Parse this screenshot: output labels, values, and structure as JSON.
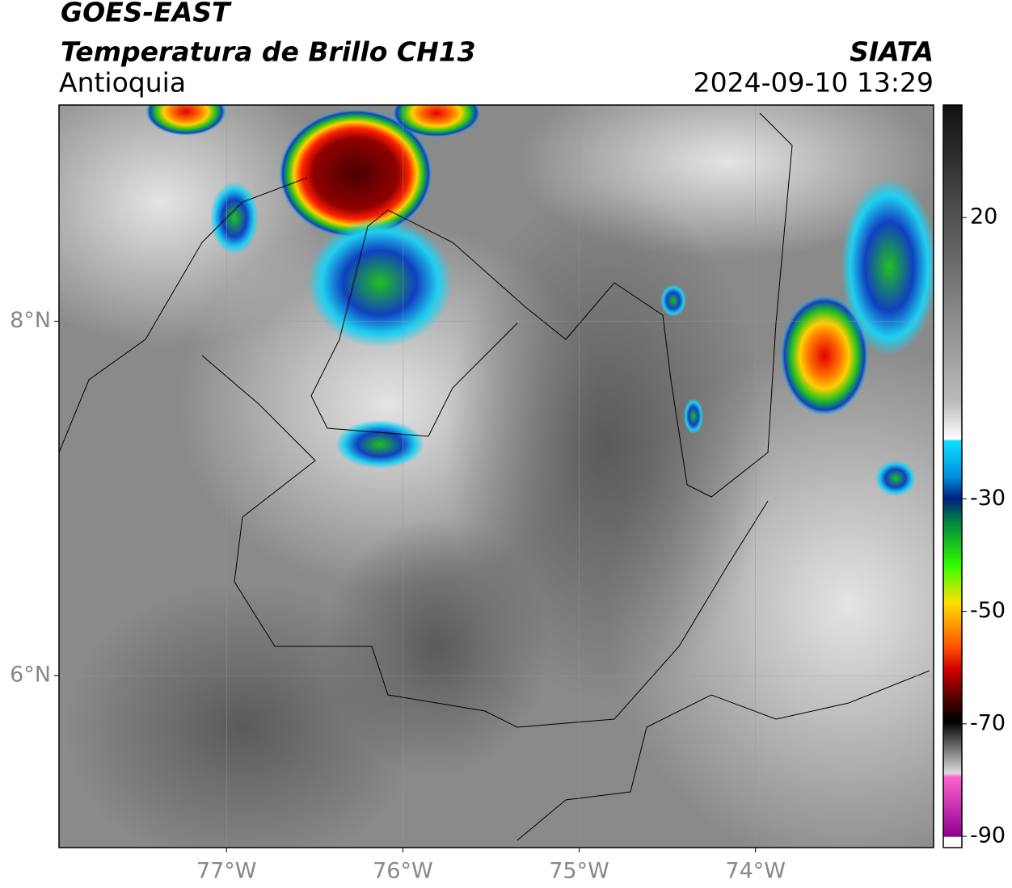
{
  "chart_data": {
    "type": "map",
    "title": "GOES-EAST",
    "subtitle": "Temperatura de Brillo CH13",
    "region": "Antioquia",
    "source": "SIATA",
    "datetime": "2024-09-10 13:29",
    "xlim": [
      -77.95,
      -72.99
    ],
    "xticks": [
      {
        "value": -77,
        "label": "77°W"
      },
      {
        "value": -76,
        "label": "76°W"
      },
      {
        "value": -75,
        "label": "75°W"
      },
      {
        "value": -74,
        "label": "74°W"
      }
    ],
    "ylim": [
      5.03,
      9.22
    ],
    "yticks": [
      {
        "value": 6,
        "label": "6°N"
      },
      {
        "value": 8,
        "label": "8°N"
      }
    ],
    "grid": true,
    "colorbar": {
      "lim": [
        -92,
        40
      ],
      "ticks": [
        20,
        -30,
        -50,
        -70,
        -90
      ]
    }
  }
}
